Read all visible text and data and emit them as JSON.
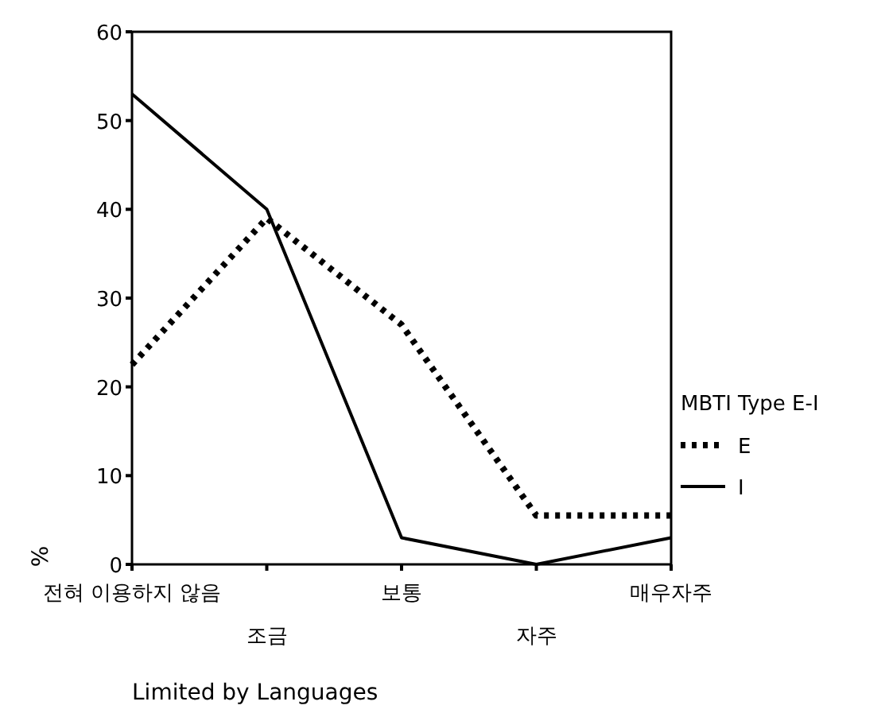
{
  "chart_data": {
    "type": "line",
    "xlabel": "Limited by Languages",
    "ylabel": "%",
    "legend_title": "MBTI Type  E-I",
    "categories": [
      "전혀 이용하지 않음",
      "조금",
      "보통",
      "자주",
      "매우자주"
    ],
    "series": [
      {
        "name": "E",
        "color": "#000000",
        "line_style": "dotted",
        "values": [
          22.5,
          39,
          27,
          5.5,
          5.5
        ]
      },
      {
        "name": "I",
        "color": "#000000",
        "line_style": "solid",
        "values": [
          53,
          40,
          3,
          0,
          3
        ]
      }
    ],
    "ylim": [
      0,
      60
    ],
    "yticks": [
      0,
      10,
      20,
      30,
      40,
      50,
      60
    ],
    "grid": false,
    "legend": "right",
    "marker": "none"
  }
}
